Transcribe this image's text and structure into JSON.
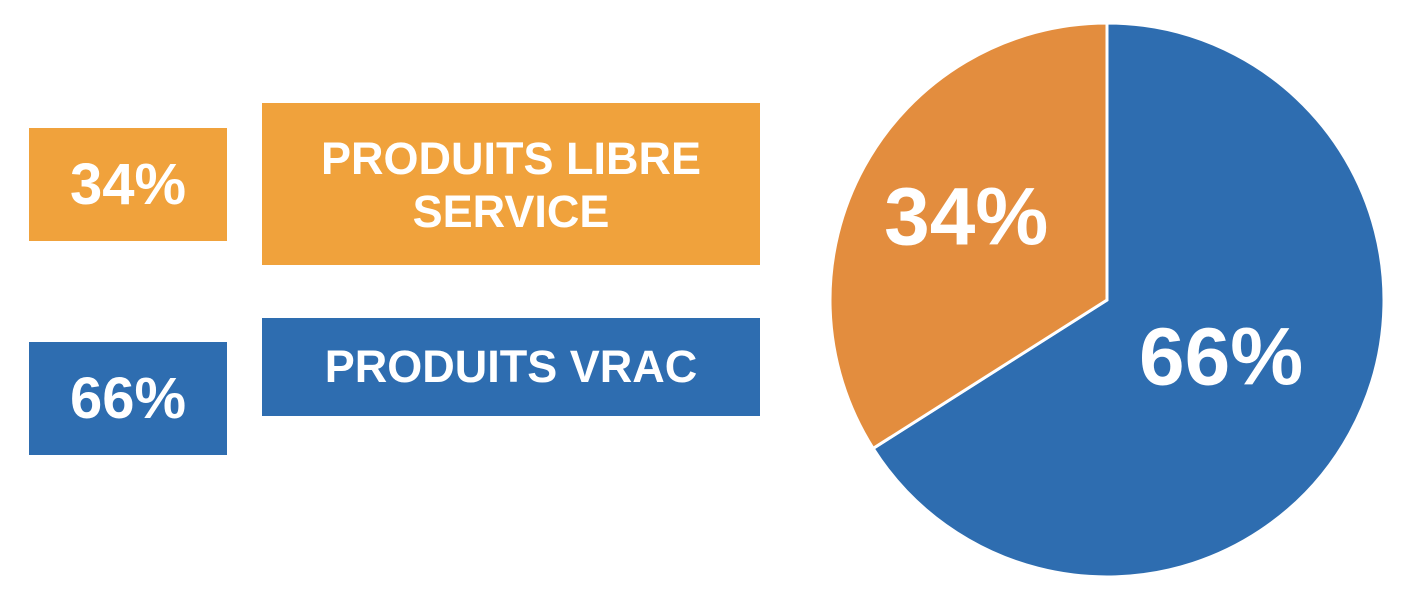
{
  "legend": [
    {
      "percent": "34%",
      "label": "PRODUITS LIBRE\nSERVICE",
      "color": "#F0A23C"
    },
    {
      "percent": "66%",
      "label": "PRODUITS VRAC",
      "color": "#2E6DB0"
    }
  ],
  "chart_data": {
    "type": "pie",
    "title": "",
    "categories": [
      "PRODUITS LIBRE SERVICE",
      "PRODUITS VRAC"
    ],
    "values": [
      34,
      66
    ],
    "unit": "%",
    "data_labels": [
      "34%",
      "66%"
    ],
    "colors": [
      "#E38D3E",
      "#2E6DB0"
    ],
    "legend_placement": "left"
  }
}
